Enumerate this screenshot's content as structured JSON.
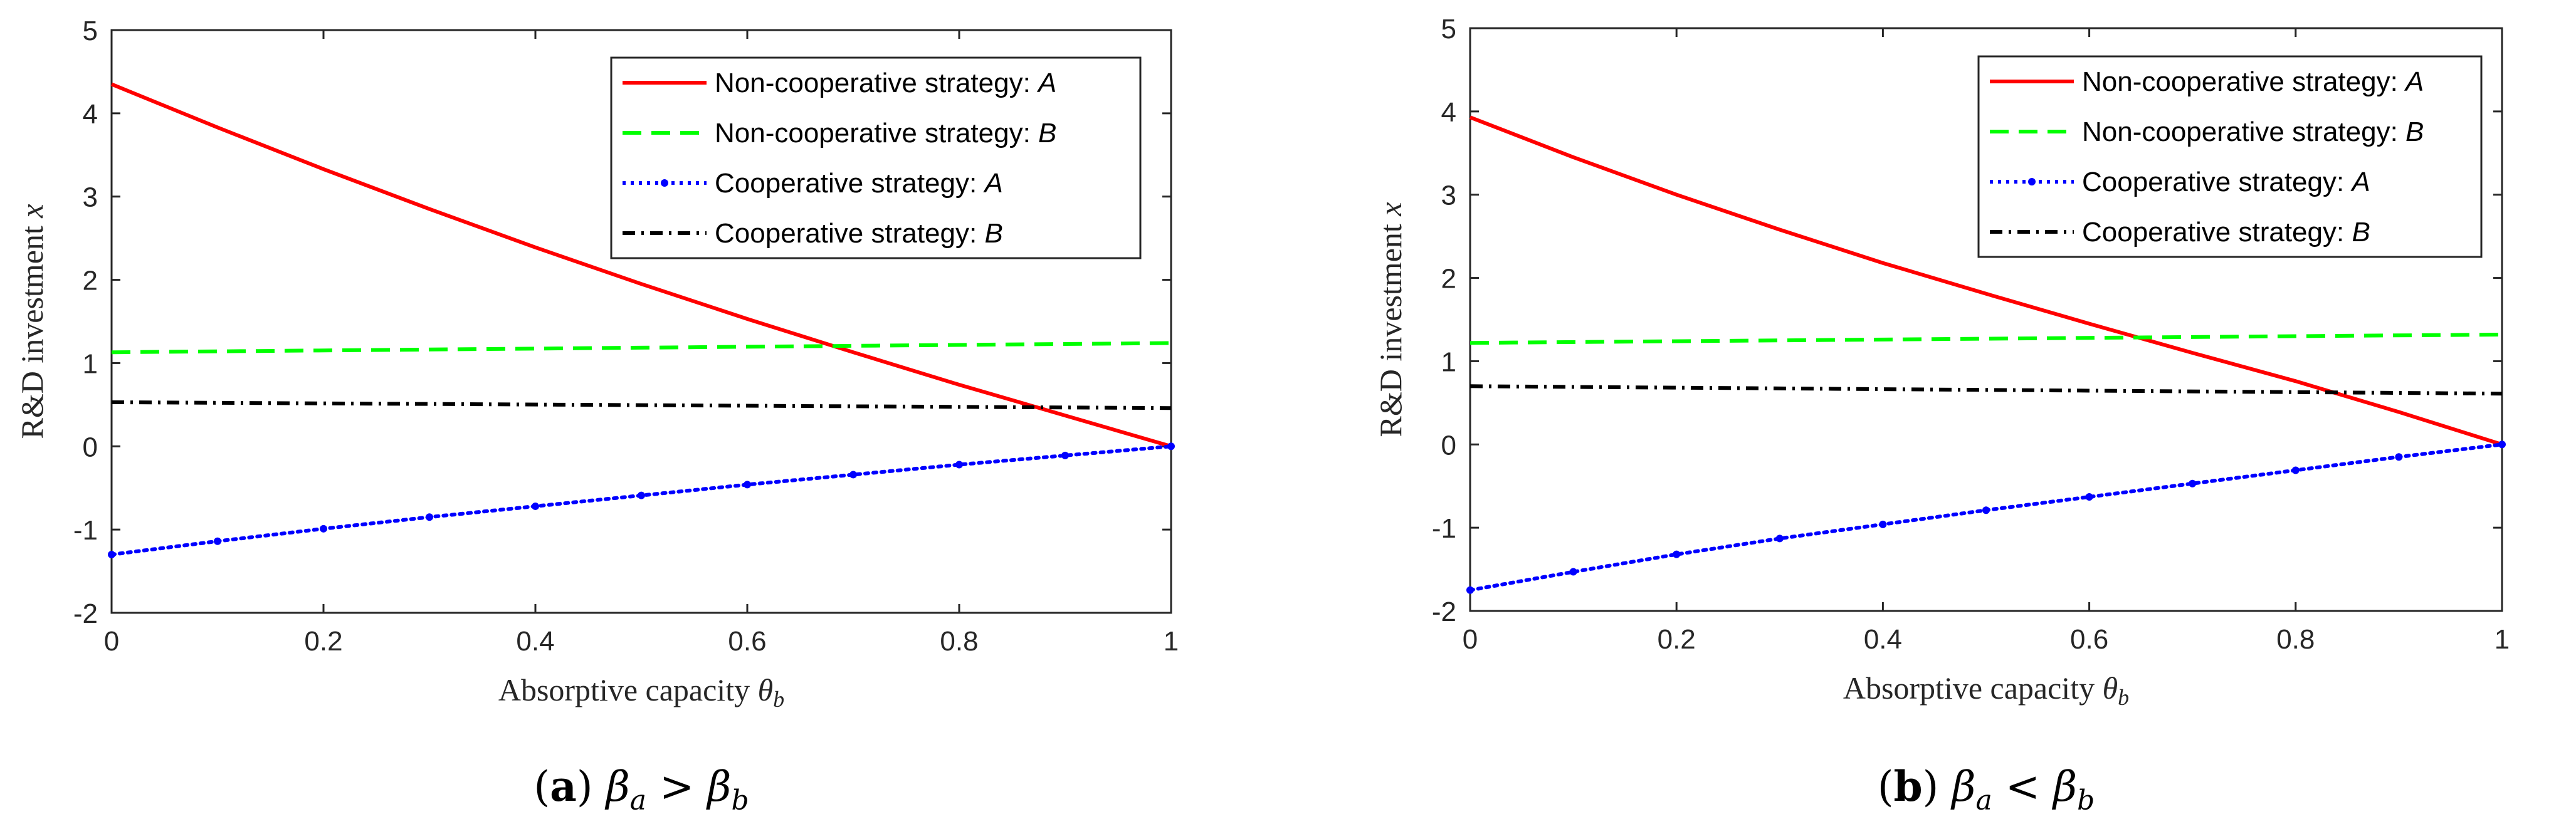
{
  "chart_data": [
    {
      "id": "a",
      "type": "line",
      "caption": {
        "letter": "a",
        "math": "β",
        "sub1": "a",
        "op": ">",
        "sub2": "b"
      },
      "xlabel": "Absorptive capacity",
      "xlabel_symbol": "θ",
      "xlabel_sub": "b",
      "ylabel": "R&D investment",
      "ylabel_symbol": "x",
      "xlim": [
        0,
        1
      ],
      "ylim": [
        -2,
        5
      ],
      "x_ticks": [
        "0",
        "0.2",
        "0.4",
        "0.6",
        "0.8",
        "1"
      ],
      "y_ticks": [
        "-2",
        "-1",
        "0",
        "1",
        "2",
        "3",
        "4",
        "5"
      ],
      "legend_position": "top-right",
      "series": [
        {
          "name": "Non-cooperative strategy: ",
          "party": "A",
          "color": "#ff0000",
          "style": "solid",
          "marker": false,
          "x": [
            0,
            0.1,
            0.2,
            0.3,
            0.4,
            0.5,
            0.6,
            0.7,
            0.8,
            0.9,
            1.0
          ],
          "y": [
            4.35,
            3.83,
            3.33,
            2.85,
            2.39,
            1.95,
            1.53,
            1.13,
            0.74,
            0.37,
            0.0
          ]
        },
        {
          "name": "Non-cooperative strategy: ",
          "party": "B",
          "color": "#00ff00",
          "style": "dashed",
          "marker": false,
          "x": [
            0,
            1.0
          ],
          "y": [
            1.13,
            1.24
          ]
        },
        {
          "name": "Cooperative strategy: ",
          "party": "A",
          "color": "#0000ff",
          "style": "dotted",
          "marker": true,
          "x": [
            0,
            0.1,
            0.2,
            0.3,
            0.4,
            0.5,
            0.6,
            0.7,
            0.8,
            0.9,
            1.0
          ],
          "y": [
            -1.3,
            -1.14,
            -0.99,
            -0.85,
            -0.72,
            -0.59,
            -0.46,
            -0.34,
            -0.22,
            -0.11,
            0.0
          ]
        },
        {
          "name": "Cooperative strategy: ",
          "party": "B",
          "color": "#000000",
          "style": "dashdot",
          "marker": false,
          "x": [
            0,
            1.0
          ],
          "y": [
            0.53,
            0.46
          ]
        }
      ]
    },
    {
      "id": "b",
      "type": "line",
      "caption": {
        "letter": "b",
        "math": "β",
        "sub1": "a",
        "op": "<",
        "sub2": "b"
      },
      "xlabel": "Absorptive capacity",
      "xlabel_symbol": "θ",
      "xlabel_sub": "b",
      "ylabel": "R&D investment",
      "ylabel_symbol": "x",
      "xlim": [
        0,
        1
      ],
      "ylim": [
        -2,
        5
      ],
      "x_ticks": [
        "0",
        "0.2",
        "0.4",
        "0.6",
        "0.8",
        "1"
      ],
      "y_ticks": [
        "-2",
        "-1",
        "0",
        "1",
        "2",
        "3",
        "4",
        "5"
      ],
      "legend_position": "top-right",
      "series": [
        {
          "name": "Non-cooperative strategy: ",
          "party": "A",
          "color": "#ff0000",
          "style": "solid",
          "marker": false,
          "x": [
            0,
            0.1,
            0.2,
            0.3,
            0.4,
            0.5,
            0.6,
            0.7,
            0.8,
            0.9,
            1.0
          ],
          "y": [
            3.93,
            3.45,
            3.0,
            2.58,
            2.18,
            1.81,
            1.45,
            1.1,
            0.76,
            0.39,
            0.0
          ]
        },
        {
          "name": "Non-cooperative strategy: ",
          "party": "B",
          "color": "#00ff00",
          "style": "dashed",
          "marker": false,
          "x": [
            0,
            1.0
          ],
          "y": [
            1.22,
            1.32
          ]
        },
        {
          "name": "Cooperative strategy: ",
          "party": "A",
          "color": "#0000ff",
          "style": "dotted",
          "marker": true,
          "x": [
            0,
            0.1,
            0.2,
            0.3,
            0.4,
            0.5,
            0.6,
            0.7,
            0.8,
            0.9,
            1.0
          ],
          "y": [
            -1.75,
            -1.53,
            -1.32,
            -1.13,
            -0.96,
            -0.79,
            -0.63,
            -0.47,
            -0.31,
            -0.15,
            0.0
          ]
        },
        {
          "name": "Cooperative strategy: ",
          "party": "B",
          "color": "#000000",
          "style": "dashdot",
          "marker": false,
          "x": [
            0,
            1.0
          ],
          "y": [
            0.7,
            0.61
          ]
        }
      ]
    }
  ]
}
